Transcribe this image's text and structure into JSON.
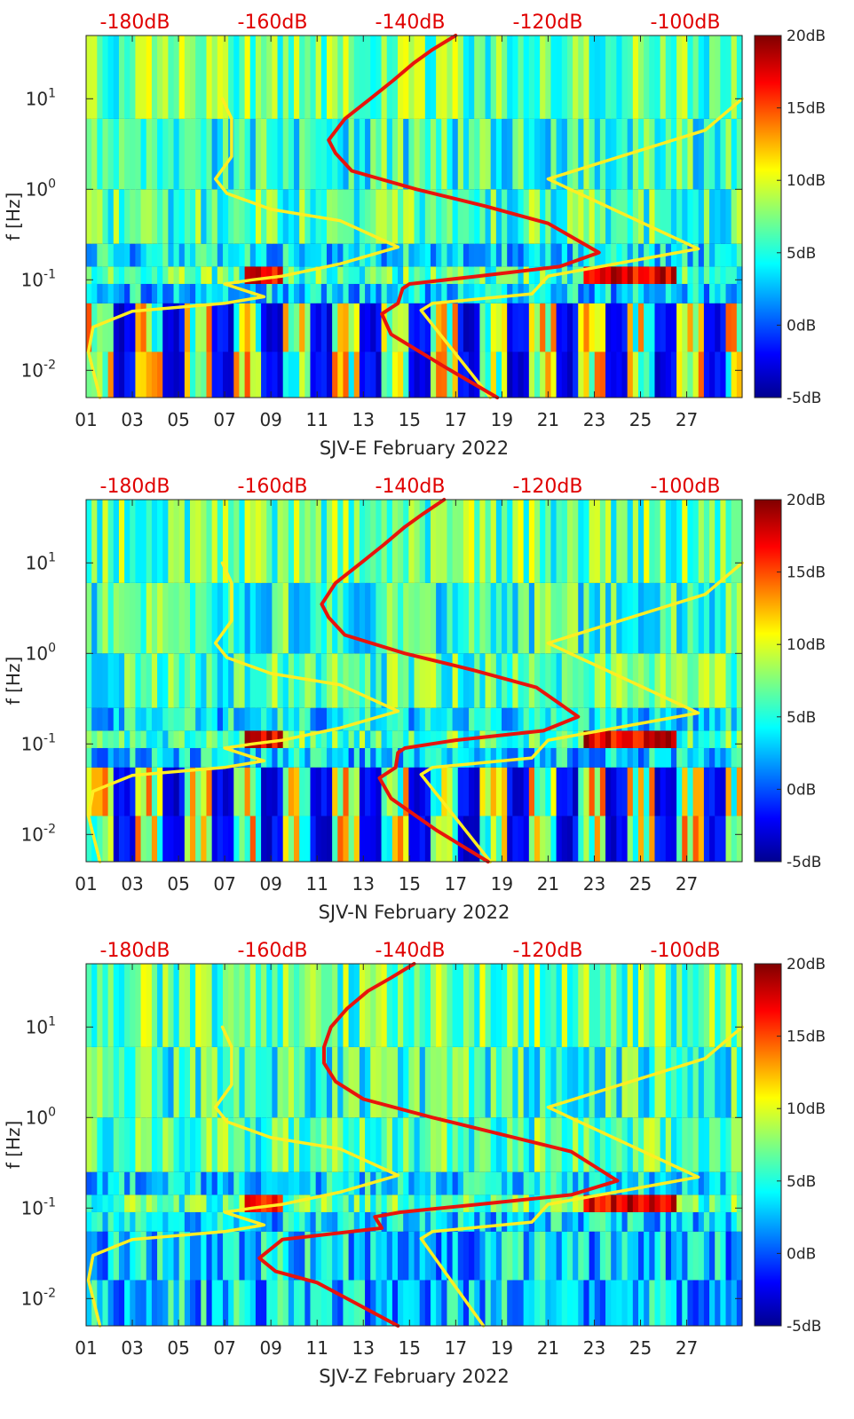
{
  "colors": {
    "noise_model": "#ffee22",
    "rms_curve": "#e8140c",
    "db_scale_text": "#e00000",
    "axis": "#262626",
    "background_dark": "#00008f"
  },
  "chart_data": [
    {
      "type": "heatmap",
      "channel": "SJV-E",
      "xlabel": "SJV-E February 2022",
      "ylabel": "f [Hz]",
      "x_range_days": [
        1,
        29.4
      ],
      "y_range_hz": [
        0.005,
        50
      ],
      "y_scale": "log",
      "x_tick_labels": [
        "01",
        "03",
        "05",
        "07",
        "09",
        "11",
        "13",
        "15",
        "17",
        "19",
        "21",
        "23",
        "25",
        "27"
      ],
      "y_tick_labels": [
        "10^1",
        "10^0",
        "10^-1",
        "10^-2"
      ],
      "top_scale_labels": [
        "-180dB",
        "-160dB",
        "-140dB",
        "-120dB",
        "-100dB"
      ],
      "colorbar": {
        "labels": [
          "20dB",
          "15dB",
          "10dB",
          "5dB",
          "0dB",
          "-5dB"
        ],
        "range_db": [
          -5,
          20
        ],
        "colormap": "jet"
      },
      "series": [
        {
          "name": "noise model",
          "color": "#ffee22",
          "points": [
            [
              6.9,
              10
            ],
            [
              7.3,
              6
            ],
            [
              7.3,
              2.3
            ],
            [
              6.6,
              1.3
            ],
            [
              7.1,
              0.9
            ],
            [
              9,
              0.6
            ],
            [
              12,
              0.45
            ],
            [
              14.5,
              0.23
            ],
            [
              12,
              0.15
            ],
            [
              9.5,
              0.11
            ],
            [
              8.2,
              0.1
            ],
            [
              7,
              0.09
            ],
            [
              8.7,
              0.065
            ],
            [
              7,
              0.055
            ],
            [
              3,
              0.045
            ],
            [
              1.3,
              0.03
            ],
            [
              1.1,
              0.016
            ],
            [
              1.6,
              0.005
            ]
          ]
        },
        {
          "name": "noise model (right)",
          "color": "#ffee22",
          "points": [
            [
              29.4,
              10
            ],
            [
              27.8,
              4.5
            ],
            [
              21,
              1.3
            ],
            [
              27.5,
              0.22
            ],
            [
              21,
              0.11
            ],
            [
              20.3,
              0.07
            ],
            [
              16,
              0.055
            ],
            [
              15.5,
              0.046
            ],
            [
              18.5,
              0.005
            ]
          ]
        },
        {
          "name": "RMS amplitude",
          "color": "#e8140c",
          "points": [
            [
              17,
              50
            ],
            [
              16,
              35
            ],
            [
              15.2,
              25
            ],
            [
              14.3,
              16
            ],
            [
              13.3,
              10
            ],
            [
              12.2,
              6
            ],
            [
              11.5,
              3.5
            ],
            [
              11.8,
              2.5
            ],
            [
              12.5,
              1.6
            ],
            [
              15.3,
              1
            ],
            [
              18.3,
              0.65
            ],
            [
              21,
              0.42
            ],
            [
              23.2,
              0.2
            ],
            [
              21.5,
              0.14
            ],
            [
              18,
              0.11
            ],
            [
              15,
              0.09
            ],
            [
              14.7,
              0.08
            ],
            [
              14.5,
              0.055
            ],
            [
              13.8,
              0.042
            ],
            [
              14.2,
              0.025
            ],
            [
              16.5,
              0.011
            ],
            [
              18.8,
              0.005
            ]
          ]
        }
      ]
    },
    {
      "type": "heatmap",
      "channel": "SJV-N",
      "xlabel": "SJV-N February 2022",
      "ylabel": "f [Hz]",
      "x_range_days": [
        1,
        29.4
      ],
      "y_range_hz": [
        0.005,
        50
      ],
      "y_scale": "log",
      "x_tick_labels": [
        "01",
        "03",
        "05",
        "07",
        "09",
        "11",
        "13",
        "15",
        "17",
        "19",
        "21",
        "23",
        "25",
        "27"
      ],
      "y_tick_labels": [
        "10^1",
        "10^0",
        "10^-1",
        "10^-2"
      ],
      "top_scale_labels": [
        "-180dB",
        "-160dB",
        "-140dB",
        "-120dB",
        "-100dB"
      ],
      "colorbar": {
        "labels": [
          "20dB",
          "15dB",
          "10dB",
          "5dB",
          "0dB",
          "-5dB"
        ],
        "range_db": [
          -5,
          20
        ],
        "colormap": "jet"
      },
      "series": [
        {
          "name": "noise model",
          "color": "#ffee22",
          "points": [
            [
              6.9,
              10
            ],
            [
              7.3,
              6
            ],
            [
              7.3,
              2.3
            ],
            [
              6.6,
              1.3
            ],
            [
              7.1,
              0.9
            ],
            [
              9,
              0.6
            ],
            [
              12,
              0.45
            ],
            [
              14.5,
              0.23
            ],
            [
              12,
              0.15
            ],
            [
              9.5,
              0.11
            ],
            [
              8.2,
              0.1
            ],
            [
              7,
              0.09
            ],
            [
              8.7,
              0.065
            ],
            [
              7,
              0.055
            ],
            [
              3,
              0.045
            ],
            [
              1.3,
              0.03
            ],
            [
              1.1,
              0.016
            ],
            [
              1.6,
              0.005
            ]
          ]
        },
        {
          "name": "noise model (right)",
          "color": "#ffee22",
          "points": [
            [
              29.4,
              10
            ],
            [
              27.8,
              4.5
            ],
            [
              21,
              1.3
            ],
            [
              27.5,
              0.22
            ],
            [
              21,
              0.11
            ],
            [
              20.3,
              0.07
            ],
            [
              16,
              0.055
            ],
            [
              15.5,
              0.046
            ],
            [
              18.5,
              0.005
            ]
          ]
        },
        {
          "name": "RMS amplitude",
          "color": "#e8140c",
          "points": [
            [
              16.5,
              50
            ],
            [
              15.6,
              35
            ],
            [
              14.8,
              25
            ],
            [
              13.9,
              16
            ],
            [
              12.9,
              10
            ],
            [
              11.8,
              6
            ],
            [
              11.2,
              3.5
            ],
            [
              11.5,
              2.5
            ],
            [
              12.2,
              1.6
            ],
            [
              14.8,
              1
            ],
            [
              17.8,
              0.65
            ],
            [
              20.5,
              0.42
            ],
            [
              22.3,
              0.2
            ],
            [
              20.8,
              0.14
            ],
            [
              17,
              0.11
            ],
            [
              14.8,
              0.09
            ],
            [
              14.5,
              0.08
            ],
            [
              14.4,
              0.055
            ],
            [
              13.7,
              0.042
            ],
            [
              14.2,
              0.025
            ],
            [
              16.2,
              0.011
            ],
            [
              18.4,
              0.005
            ]
          ]
        }
      ]
    },
    {
      "type": "heatmap",
      "channel": "SJV-Z",
      "xlabel": "SJV-Z February 2022",
      "ylabel": "f [Hz]",
      "x_range_days": [
        1,
        29.4
      ],
      "y_range_hz": [
        0.005,
        50
      ],
      "y_scale": "log",
      "x_tick_labels": [
        "01",
        "03",
        "05",
        "07",
        "09",
        "11",
        "13",
        "15",
        "17",
        "19",
        "21",
        "23",
        "25",
        "27"
      ],
      "y_tick_labels": [
        "10^1",
        "10^0",
        "10^-1",
        "10^-2"
      ],
      "top_scale_labels": [
        "-180dB",
        "-160dB",
        "-140dB",
        "-120dB",
        "-100dB"
      ],
      "colorbar": {
        "labels": [
          "20dB",
          "15dB",
          "10dB",
          "5dB",
          "0dB",
          "-5dB"
        ],
        "range_db": [
          -5,
          20
        ],
        "colormap": "jet"
      },
      "series": [
        {
          "name": "noise model",
          "color": "#ffee22",
          "points": [
            [
              6.9,
              10
            ],
            [
              7.3,
              6
            ],
            [
              7.3,
              2.3
            ],
            [
              6.6,
              1.3
            ],
            [
              7.1,
              0.9
            ],
            [
              9,
              0.6
            ],
            [
              12,
              0.45
            ],
            [
              14.5,
              0.23
            ],
            [
              12,
              0.15
            ],
            [
              9.5,
              0.11
            ],
            [
              8.2,
              0.1
            ],
            [
              7,
              0.09
            ],
            [
              8.7,
              0.065
            ],
            [
              7,
              0.055
            ],
            [
              3,
              0.045
            ],
            [
              1.3,
              0.03
            ],
            [
              1.1,
              0.016
            ],
            [
              1.6,
              0.005
            ]
          ]
        },
        {
          "name": "noise model (right)",
          "color": "#ffee22",
          "points": [
            [
              29.4,
              10
            ],
            [
              27.8,
              4.5
            ],
            [
              21,
              1.3
            ],
            [
              27.5,
              0.22
            ],
            [
              21,
              0.11
            ],
            [
              20.3,
              0.07
            ],
            [
              16,
              0.055
            ],
            [
              15.5,
              0.046
            ],
            [
              18.2,
              0.005
            ]
          ]
        },
        {
          "name": "RMS amplitude",
          "color": "#e8140c",
          "points": [
            [
              15.2,
              50
            ],
            [
              14.2,
              35
            ],
            [
              13.2,
              25
            ],
            [
              12.3,
              16
            ],
            [
              11.6,
              10
            ],
            [
              11.3,
              6
            ],
            [
              11.3,
              4
            ],
            [
              11.8,
              2.5
            ],
            [
              13,
              1.6
            ],
            [
              16,
              1
            ],
            [
              19,
              0.65
            ],
            [
              22,
              0.42
            ],
            [
              24,
              0.2
            ],
            [
              22,
              0.14
            ],
            [
              18,
              0.11
            ],
            [
              14.6,
              0.09
            ],
            [
              13.5,
              0.08
            ],
            [
              13.8,
              0.06
            ],
            [
              9.5,
              0.045
            ],
            [
              8.5,
              0.028
            ],
            [
              9.2,
              0.02
            ],
            [
              11,
              0.015
            ],
            [
              14.5,
              0.005
            ]
          ]
        }
      ]
    }
  ]
}
